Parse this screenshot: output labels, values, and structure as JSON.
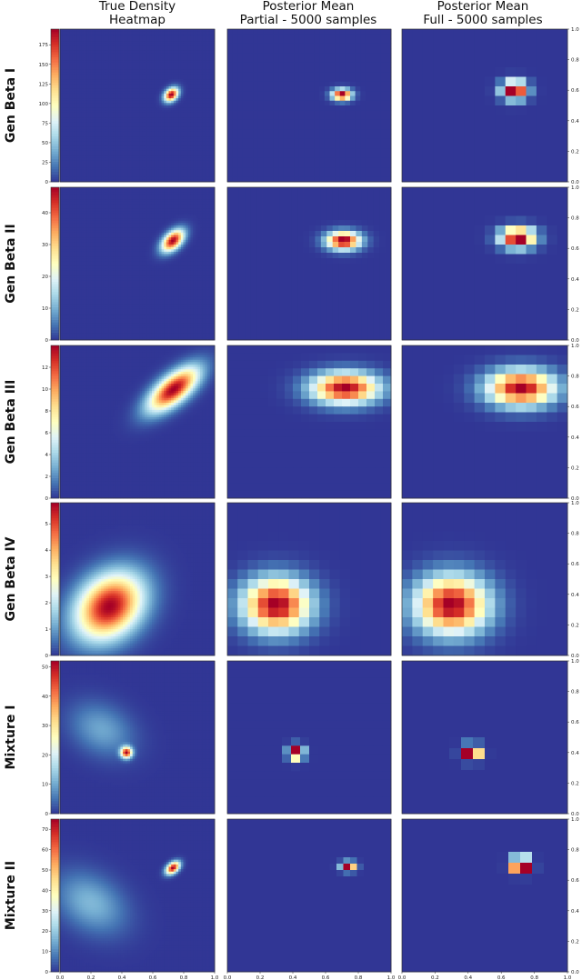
{
  "column_titles": [
    [
      "True Density",
      "Heatmap"
    ],
    [
      "Posterior Mean",
      "Partial - 5000 samples"
    ],
    [
      "Posterior Mean",
      "Full - 5000 samples"
    ]
  ],
  "row_labels": [
    "Gen Beta I",
    "Gen Beta II",
    "Gen Beta III",
    "Gen Beta IV",
    "Mixture I",
    "Mixture II"
  ],
  "colormap": [
    "#313695",
    "#4575b4",
    "#74add1",
    "#abd9e9",
    "#e0f3f8",
    "#ffffbf",
    "#fee090",
    "#fdae61",
    "#f46d43",
    "#d73027",
    "#a50026"
  ],
  "axis_ticks": {
    "x": [
      "0.0",
      "0.2",
      "0.4",
      "0.6",
      "0.8",
      "1.0"
    ],
    "right_y": [
      "0.0",
      "0.2",
      "0.4",
      "0.6",
      "0.8",
      "1.0"
    ]
  },
  "chart_data": [
    {
      "type": "heatmap",
      "row": "Gen Beta I",
      "colorbar_ticks": [
        "0",
        "25",
        "50",
        "75",
        "100",
        "125",
        "150",
        "175"
      ],
      "colorbar_range": [
        0,
        195
      ],
      "true_density": {
        "shape": "ellipse",
        "center": [
          0.72,
          0.57
        ],
        "spread": [
          0.035,
          0.025
        ],
        "angle_deg": 45
      },
      "partial": {
        "shape": "blocky",
        "center": [
          0.7,
          0.57
        ],
        "spread": [
          0.04,
          0.025
        ],
        "grid": 32
      },
      "full": {
        "shape": "blocky",
        "center": [
          0.68,
          0.6
        ],
        "spread": [
          0.05,
          0.04
        ],
        "grid": 16
      }
    },
    {
      "type": "heatmap",
      "row": "Gen Beta II",
      "colorbar_ticks": [
        "0",
        "10",
        "20",
        "30",
        "40"
      ],
      "colorbar_range": [
        0,
        48
      ],
      "true_density": {
        "shape": "ellipse",
        "center": [
          0.73,
          0.65
        ],
        "spread": [
          0.06,
          0.035
        ],
        "angle_deg": 45
      },
      "partial": {
        "shape": "blocky",
        "center": [
          0.71,
          0.65
        ],
        "spread": [
          0.07,
          0.04
        ],
        "grid": 28
      },
      "full": {
        "shape": "blocky",
        "center": [
          0.7,
          0.67
        ],
        "spread": [
          0.07,
          0.045
        ],
        "grid": 16
      }
    },
    {
      "type": "heatmap",
      "row": "Gen Beta III",
      "colorbar_ticks": [
        "0",
        "2",
        "4",
        "6",
        "8",
        "10",
        "12"
      ],
      "colorbar_range": [
        0,
        14
      ],
      "true_density": {
        "shape": "teardrop",
        "center": [
          0.72,
          0.7
        ],
        "spread": [
          0.14,
          0.06
        ],
        "angle_deg": 40
      },
      "partial": {
        "shape": "blocky",
        "center": [
          0.72,
          0.72
        ],
        "spread": [
          0.14,
          0.07
        ],
        "grid": 20
      },
      "full": {
        "shape": "blocky",
        "center": [
          0.72,
          0.72
        ],
        "spread": [
          0.14,
          0.08
        ],
        "grid": 16
      }
    },
    {
      "type": "heatmap",
      "row": "Gen Beta IV",
      "colorbar_ticks": [
        "0",
        "1",
        "2",
        "3",
        "4",
        "5"
      ],
      "colorbar_range": [
        0,
        5.8
      ],
      "true_density": {
        "shape": "ellipse",
        "center": [
          0.32,
          0.32
        ],
        "spread": [
          0.17,
          0.13
        ],
        "angle_deg": 45
      },
      "partial": {
        "shape": "blocky",
        "center": [
          0.3,
          0.33
        ],
        "spread": [
          0.14,
          0.12
        ],
        "grid": 16
      },
      "full": {
        "shape": "blocky",
        "center": [
          0.3,
          0.33
        ],
        "spread": [
          0.15,
          0.13
        ],
        "grid": 16
      }
    },
    {
      "type": "heatmap",
      "row": "Mixture I",
      "colorbar_ticks": [
        "0",
        "10",
        "20",
        "30",
        "40",
        "50"
      ],
      "colorbar_range": [
        0,
        52
      ],
      "true_density": {
        "shape": "mixture",
        "components": [
          {
            "center": [
              0.27,
              0.55
            ],
            "spread": [
              0.15,
              0.11
            ],
            "angle_deg": -30,
            "weight": 0.2
          },
          {
            "center": [
              0.43,
              0.4
            ],
            "spread": [
              0.025,
              0.025
            ],
            "angle_deg": 0,
            "weight": 1.0
          }
        ]
      },
      "partial": {
        "shape": "blocky",
        "center": [
          0.42,
          0.4
        ],
        "spread": [
          0.03,
          0.03
        ],
        "grid": 18
      },
      "full": {
        "shape": "blocky",
        "center": [
          0.42,
          0.4
        ],
        "spread": [
          0.035,
          0.03
        ],
        "grid": 14
      }
    },
    {
      "type": "heatmap",
      "row": "Mixture II",
      "colorbar_ticks": [
        "0",
        "10",
        "20",
        "30",
        "40",
        "50",
        "60",
        "70"
      ],
      "colorbar_range": [
        0,
        75
      ],
      "true_density": {
        "shape": "mixture",
        "components": [
          {
            "center": [
              0.2,
              0.45
            ],
            "spread": [
              0.17,
              0.12
            ],
            "angle_deg": -35,
            "weight": 0.22
          },
          {
            "center": [
              0.73,
              0.68
            ],
            "spread": [
              0.035,
              0.022
            ],
            "angle_deg": 40,
            "weight": 1.0
          }
        ]
      },
      "partial": {
        "shape": "blocky",
        "center": [
          0.74,
          0.69
        ],
        "spread": [
          0.03,
          0.02
        ],
        "grid": 24
      },
      "full": {
        "shape": "blocky",
        "center": [
          0.72,
          0.7
        ],
        "spread": [
          0.035,
          0.03
        ],
        "grid": 14
      }
    }
  ]
}
